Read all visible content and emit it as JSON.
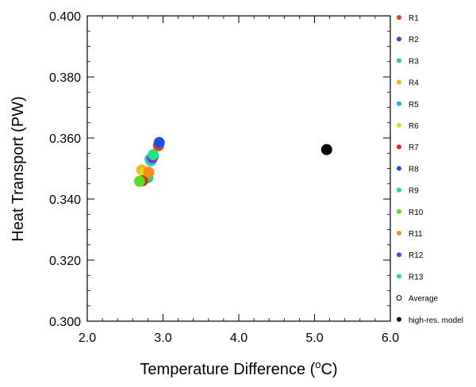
{
  "chart_data": {
    "type": "scatter",
    "xlabel": "Temperature Difference (",
    "xlabel_unit_super": "o",
    "xlabel_unit_tail": "C)",
    "ylabel": "Heat Transport (PW)",
    "xlim": [
      2.0,
      6.0
    ],
    "ylim": [
      0.3,
      0.4
    ],
    "xticks": [
      "2.0",
      "3.0",
      "4.0",
      "5.0",
      "6.0"
    ],
    "yticks": [
      "0.300",
      "0.320",
      "0.340",
      "0.360",
      "0.380",
      "0.400"
    ],
    "grid": false,
    "legend_position": "right",
    "series": [
      {
        "name": "R1",
        "color": "#ef3a1e",
        "points": [
          [
            2.94,
            0.3575
          ]
        ]
      },
      {
        "name": "R2",
        "color": "#6a2bdc",
        "points": [
          [
            2.87,
            0.354
          ]
        ]
      },
      {
        "name": "R3",
        "color": "#25d86a",
        "points": [
          [
            2.8,
            0.347
          ]
        ]
      },
      {
        "name": "R4",
        "color": "#ffb020",
        "points": [
          [
            2.72,
            0.3495
          ]
        ]
      },
      {
        "name": "R5",
        "color": "#1fb0ee",
        "points": [
          [
            2.83,
            0.353
          ]
        ]
      },
      {
        "name": "R6",
        "color": "#c8e614",
        "points": [
          [
            2.76,
            0.3485
          ]
        ]
      },
      {
        "name": "R7",
        "color": "#e8201c",
        "points": [
          [
            2.73,
            0.346
          ]
        ]
      },
      {
        "name": "R8",
        "color": "#1f4fe2",
        "points": [
          [
            2.95,
            0.3585
          ]
        ]
      },
      {
        "name": "R9",
        "color": "#20d6b4",
        "points": [
          [
            2.84,
            0.3525
          ]
        ]
      },
      {
        "name": "R10",
        "color": "#58e020",
        "points": [
          [
            2.69,
            0.3458
          ]
        ]
      },
      {
        "name": "R11",
        "color": "#ff8a1c",
        "points": [
          [
            2.81,
            0.3488
          ]
        ]
      },
      {
        "name": "R12",
        "color": "#7a2ee0",
        "points": [
          [
            2.86,
            0.3535
          ]
        ]
      },
      {
        "name": "R13",
        "color": "#22e27a",
        "points": [
          [
            2.87,
            0.3545
          ]
        ]
      },
      {
        "name": "Average",
        "color": "#000000",
        "hollow": true,
        "points": []
      },
      {
        "name": "high-res. model",
        "color": "#000000",
        "points": [
          [
            5.16,
            0.3562
          ]
        ]
      }
    ]
  }
}
